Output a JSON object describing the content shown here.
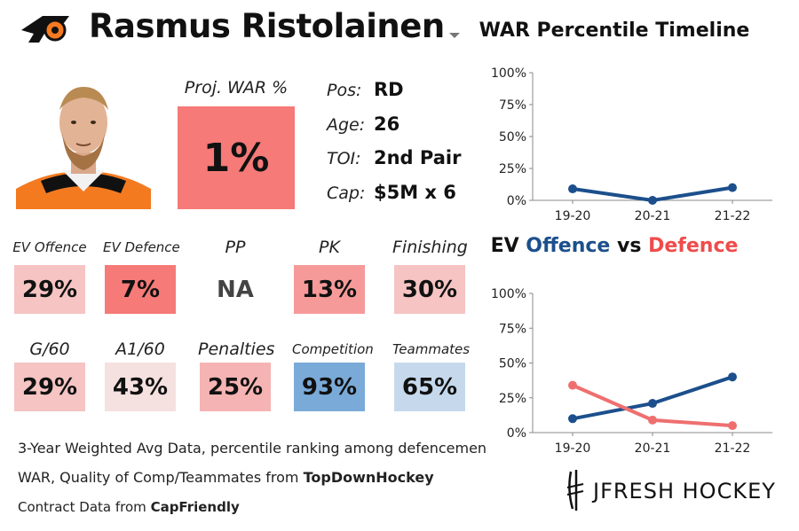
{
  "header": {
    "player_name": "Rasmus Ristolainen"
  },
  "projection": {
    "label": "Proj. WAR %",
    "value": "1%",
    "color": "#f57a78"
  },
  "info": [
    {
      "label": "Pos:",
      "value": "RD"
    },
    {
      "label": "Age:",
      "value": "26"
    },
    {
      "label": "TOI:",
      "value": "2nd Pair"
    },
    {
      "label": "Cap:",
      "value": "$5M x 6"
    }
  ],
  "stats": [
    {
      "label": "EV Offence",
      "value": "29%",
      "color": "#f5c4c3"
    },
    {
      "label": "EV Defence",
      "value": "7%",
      "color": "#f57a78"
    },
    {
      "label": "PP",
      "value": "NA",
      "color": "#ffffff"
    },
    {
      "label": "PK",
      "value": "13%",
      "color": "#f59a99"
    },
    {
      "label": "Finishing",
      "value": "30%",
      "color": "#f5c4c3"
    },
    {
      "label": "G/60",
      "value": "29%",
      "color": "#f5c4c3"
    },
    {
      "label": "A1/60",
      "value": "43%",
      "color": "#f5e1e0"
    },
    {
      "label": "Penalties",
      "value": "25%",
      "color": "#f5b4b3"
    },
    {
      "label": "Competition",
      "value": "93%",
      "color": "#7aaad8"
    },
    {
      "label": "Teammates",
      "value": "65%",
      "color": "#c6d9ec"
    }
  ],
  "footnotes": {
    "line1": "3-Year Weighted Avg Data, percentile ranking among defencemen",
    "line2_text": "WAR, Quality of Comp/Teammates from ",
    "line2_bold": "TopDownHockey",
    "line3_text": "Contract Data from ",
    "line3_bold": "CapFriendly"
  },
  "brand": {
    "text": "JFRESH HOCKEY"
  },
  "chart_data": [
    {
      "type": "line",
      "title": "WAR Percentile Timeline",
      "x": [
        "19-20",
        "20-21",
        "21-22"
      ],
      "yticks": [
        "0%",
        "25%",
        "50%",
        "75%",
        "100%"
      ],
      "ylim": [
        0,
        100
      ],
      "grid": false,
      "series": [
        {
          "values": [
            9,
            0,
            10
          ],
          "color": "#1c4f8c"
        }
      ]
    },
    {
      "type": "line",
      "title_parts": [
        "EV ",
        "Offence",
        " vs ",
        "Defence"
      ],
      "x": [
        "19-20",
        "20-21",
        "21-22"
      ],
      "yticks": [
        "0%",
        "25%",
        "50%",
        "75%",
        "100%"
      ],
      "ylim": [
        0,
        100
      ],
      "grid": false,
      "series": [
        {
          "values": [
            10,
            21,
            40
          ],
          "color": "#1c4f8c"
        },
        {
          "values": [
            34,
            9,
            5
          ],
          "color": "#ef6f6f"
        }
      ]
    }
  ]
}
